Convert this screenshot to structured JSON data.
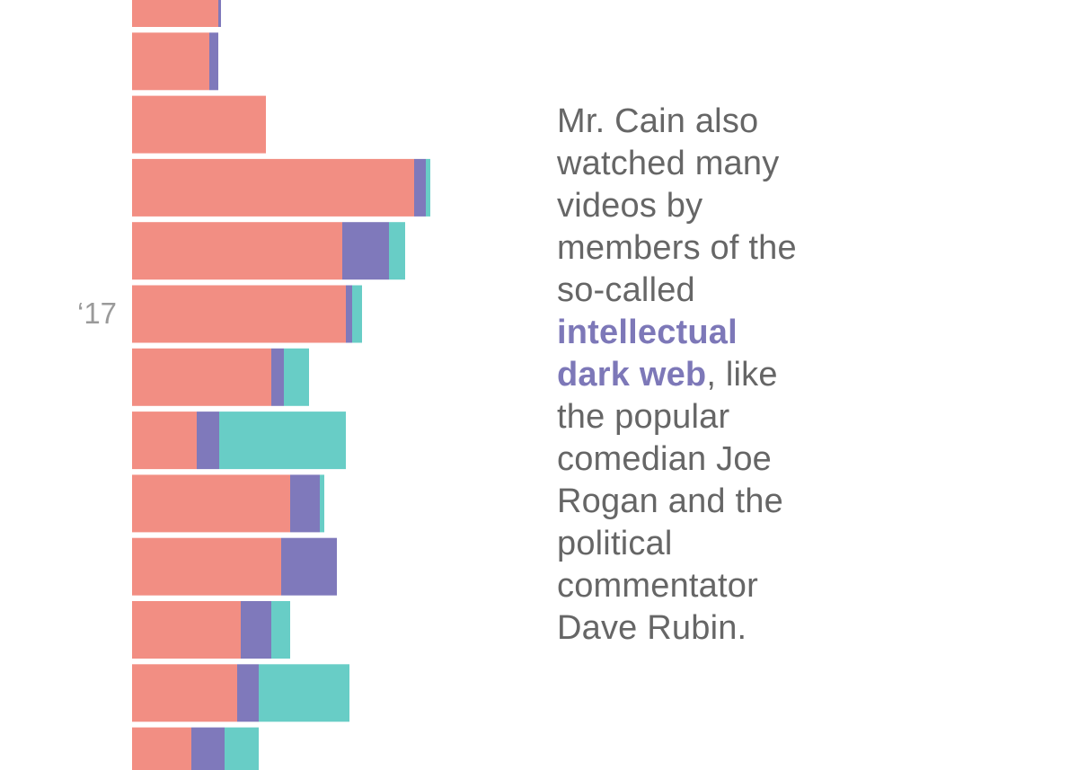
{
  "colors": {
    "series_a": "#f28e83",
    "series_b": "#7f79bb",
    "series_c": "#68cdc6"
  },
  "chart_data": {
    "type": "bar",
    "orientation": "horizontal",
    "stacked": true,
    "title": "",
    "xlabel": "",
    "ylabel": "",
    "year_label": "‘17",
    "series": [
      {
        "name": "series_a",
        "values": [
          96,
          86,
          149,
          314,
          234,
          238,
          155,
          72,
          176,
          166,
          121,
          117,
          66
        ]
      },
      {
        "name": "series_b",
        "values": [
          3,
          10,
          0,
          13,
          52,
          7,
          14,
          25,
          33,
          62,
          34,
          24,
          37
        ]
      },
      {
        "name": "series_c",
        "values": [
          0,
          0,
          0,
          5,
          18,
          11,
          28,
          141,
          5,
          0,
          21,
          101,
          38
        ]
      }
    ]
  },
  "caption": {
    "before": "Mr. Cain also watched many videos by members of the so-called ",
    "highlight": "intellectual dark web",
    "after": ", like the popular comedian Joe Rogan and the political commentator Dave Rubin."
  }
}
